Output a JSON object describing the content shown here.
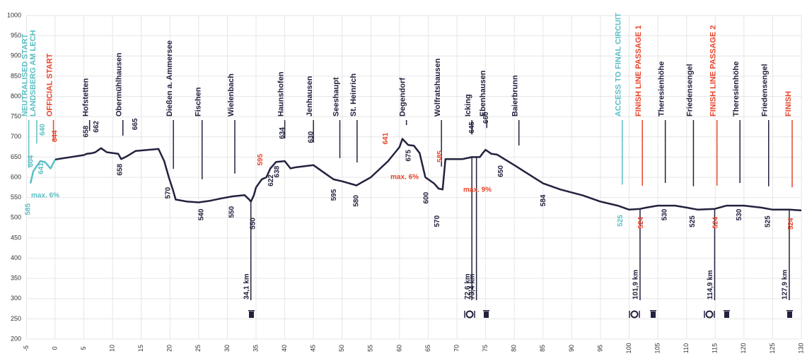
{
  "chart_data": {
    "type": "line",
    "xlim": [
      -5,
      130
    ],
    "ylim": [
      200,
      1000
    ],
    "xticks": [
      -5,
      0,
      5,
      10,
      15,
      20,
      25,
      30,
      35,
      40,
      45,
      50,
      55,
      60,
      65,
      70,
      75,
      80,
      85,
      90,
      95,
      100,
      105,
      110,
      115,
      120,
      125,
      130
    ],
    "yticks": [
      200,
      250,
      300,
      350,
      400,
      450,
      500,
      550,
      600,
      650,
      700,
      750,
      800,
      850,
      900,
      950,
      1000
    ],
    "grid": true,
    "series": [
      {
        "color": "#5bbfc4",
        "x": [
          -4.3,
          -3.8,
          -2.6,
          -1.8,
          -0.8,
          0
        ],
        "values": [
          585,
          615,
          640,
          638,
          622,
          644
        ]
      },
      {
        "color": "#22223f",
        "x": [
          0,
          5,
          5.5,
          6.5,
          7,
          8,
          9,
          11,
          11.5,
          12.5,
          14,
          18,
          19,
          19.8,
          20.5,
          21,
          23,
          25,
          27,
          29,
          31,
          33,
          33.8,
          34.1,
          34.6,
          35,
          36,
          36.8,
          37.5,
          38.5,
          40,
          41,
          42,
          45,
          47,
          48.5,
          50,
          52.5,
          55,
          58,
          60,
          60.5,
          61.5,
          62.5,
          63.5,
          64.5,
          66,
          66.8,
          67.5,
          68,
          71,
          72.6,
          73.4,
          74,
          74.5,
          75,
          76,
          77,
          80,
          85,
          88,
          92,
          95,
          98,
          100,
          101.9,
          103,
          105,
          108,
          110,
          112,
          114.9,
          117,
          120,
          123,
          125,
          127.9,
          130
        ],
        "values": [
          644,
          655,
          658,
          660,
          662,
          672,
          662,
          658,
          645,
          652,
          665,
          670,
          640,
          600,
          570,
          545,
          540,
          538,
          542,
          548,
          553,
          556,
          545,
          540,
          555,
          575,
          595,
          600,
          622,
          638,
          640,
          622,
          625,
          630,
          610,
          595,
          590,
          580,
          600,
          640,
          675,
          695,
          680,
          678,
          660,
          600,
          585,
          572,
          570,
          645,
          645,
          650,
          650,
          650,
          660,
          668,
          658,
          656,
          630,
          585,
          570,
          555,
          540,
          530,
          520,
          522,
          525,
          530,
          530,
          525,
          520,
          522,
          530,
          530,
          525,
          520,
          520,
          518
        ]
      }
    ],
    "places": [
      {
        "label": "NEUTRALISED START",
        "x": -4.6,
        "color": "#5bbfc4"
      },
      {
        "label": "LANDSBERG AM LECH",
        "x": -3.2,
        "color": "#5bbfc4"
      },
      {
        "label": "OFFICIAL START",
        "x": -0.3,
        "color": "#e8452c"
      },
      {
        "label": "Hofstetten",
        "x": 6,
        "color": "#22223f"
      },
      {
        "label": "Obermühlhausen",
        "x": 11.8,
        "color": "#22223f"
      },
      {
        "label": "Dießen a. Ammersee",
        "x": 20.6,
        "color": "#22223f"
      },
      {
        "label": "Fischen",
        "x": 25.6,
        "color": "#22223f"
      },
      {
        "label": "Wielenbach",
        "x": 31.3,
        "color": "#22223f"
      },
      {
        "label": "Haunshofen",
        "x": 40,
        "color": "#22223f"
      },
      {
        "label": "Jenhausen",
        "x": 45,
        "color": "#22223f"
      },
      {
        "label": "Seeshaupt",
        "x": 49.6,
        "color": "#22223f"
      },
      {
        "label": "St. Heinrich",
        "x": 52.6,
        "color": "#22223f"
      },
      {
        "label": "Degendorf",
        "x": 61.2,
        "color": "#22223f"
      },
      {
        "label": "Wolfratshausen",
        "x": 67.3,
        "color": "#22223f"
      },
      {
        "label": "Icking",
        "x": 72.6,
        "color": "#22223f"
      },
      {
        "label": "Ebenhausen",
        "x": 75.2,
        "color": "#22223f"
      },
      {
        "label": "Baierbrunn",
        "x": 80.8,
        "color": "#22223f"
      },
      {
        "label": "ACCESS TO FINAL CIRCUIT",
        "x": 98.8,
        "color": "#5bbfc4"
      },
      {
        "label": "FINISH LINE PASSAGE 1",
        "x": 102.3,
        "color": "#e8452c"
      },
      {
        "label": "Theresienhöhe",
        "x": 106.3,
        "color": "#22223f"
      },
      {
        "label": "Friedensengel",
        "x": 111.2,
        "color": "#22223f"
      },
      {
        "label": "FINISH LINE PASSAGE 2",
        "x": 115.3,
        "color": "#e8452c"
      },
      {
        "label": "Theresienhöhe",
        "x": 119.3,
        "color": "#22223f"
      },
      {
        "label": "Friedensengel",
        "x": 124.3,
        "color": "#22223f"
      },
      {
        "label": "FINISH",
        "x": 128.4,
        "color": "#e8452c"
      }
    ],
    "elevation_labels": [
      {
        "value": 585,
        "x": -4.7,
        "color": "#5bbfc4"
      },
      {
        "value": 604,
        "x": -4.2,
        "color": "#5bbfc4"
      },
      {
        "value": 641,
        "x": -2.4,
        "color": "#5bbfc4"
      },
      {
        "value": 640,
        "x": -2.2,
        "color": "#5bbfc4"
      },
      {
        "value": 644,
        "x": 0,
        "color": "#e8452c"
      },
      {
        "value": 658,
        "x": 5.4,
        "color": "#22223f"
      },
      {
        "value": 662,
        "x": 7.2,
        "color": "#22223f"
      },
      {
        "value": 658,
        "x": 11.3,
        "color": "#22223f"
      },
      {
        "value": 665,
        "x": 14,
        "color": "#22223f"
      },
      {
        "value": 570,
        "x": 19.7,
        "color": "#22223f"
      },
      {
        "value": 540,
        "x": 25.5,
        "color": "#22223f"
      },
      {
        "value": 550,
        "x": 30.8,
        "color": "#22223f"
      },
      {
        "value": 550,
        "x": 34.5,
        "color": "#22223f"
      },
      {
        "value": 595,
        "x": 35.8,
        "color": "#e8452c"
      },
      {
        "value": 622,
        "x": 37.6,
        "color": "#22223f"
      },
      {
        "value": 638,
        "x": 38.7,
        "color": "#22223f"
      },
      {
        "value": 634,
        "x": 39.6,
        "color": "#22223f"
      },
      {
        "value": 630,
        "x": 44.6,
        "color": "#22223f"
      },
      {
        "value": 595,
        "x": 48.6,
        "color": "#22223f"
      },
      {
        "value": 580,
        "x": 52.5,
        "color": "#22223f"
      },
      {
        "value": 641,
        "x": 57.6,
        "color": "#e8452c"
      },
      {
        "value": 675,
        "x": 61.6,
        "color": "#22223f"
      },
      {
        "value": 600,
        "x": 64.7,
        "color": "#22223f"
      },
      {
        "value": 570,
        "x": 66.6,
        "color": "#22223f"
      },
      {
        "value": 585,
        "x": 67.1,
        "color": "#e8452c"
      },
      {
        "value": 645,
        "x": 72.6,
        "color": "#22223f"
      },
      {
        "value": 660,
        "x": 75.1,
        "color": "#22223f"
      },
      {
        "value": 650,
        "x": 77.7,
        "color": "#22223f"
      },
      {
        "value": 584,
        "x": 85.1,
        "color": "#22223f"
      },
      {
        "value": 525,
        "x": 98.5,
        "color": "#5bbfc4"
      },
      {
        "value": 524,
        "x": 102.1,
        "color": "#e8452c"
      },
      {
        "value": 530,
        "x": 106.2,
        "color": "#22223f"
      },
      {
        "value": 525,
        "x": 111.1,
        "color": "#22223f"
      },
      {
        "value": 524,
        "x": 115.1,
        "color": "#e8452c"
      },
      {
        "value": 530,
        "x": 119.2,
        "color": "#22223f"
      },
      {
        "value": 525,
        "x": 124.2,
        "color": "#22223f"
      },
      {
        "value": 524,
        "x": 128.2,
        "color": "#e8452c"
      }
    ],
    "gradient_labels": [
      {
        "label": "max. 6%",
        "color": "#5bbfc4"
      },
      {
        "label": "max. 6%",
        "color": "#e8452c"
      },
      {
        "label": "max. 9%",
        "color": "#e8452c"
      }
    ],
    "distance_markers": [
      {
        "label": "34,1 km",
        "x": 34.1
      },
      {
        "label": "72,6 km",
        "x": 72.6
      },
      {
        "label": "73,4 km",
        "x": 73.4
      },
      {
        "label": "101,9 km",
        "x": 101.9
      },
      {
        "label": "114,9 km",
        "x": 114.9
      },
      {
        "label": "127,9 km",
        "x": 127.9
      }
    ]
  }
}
